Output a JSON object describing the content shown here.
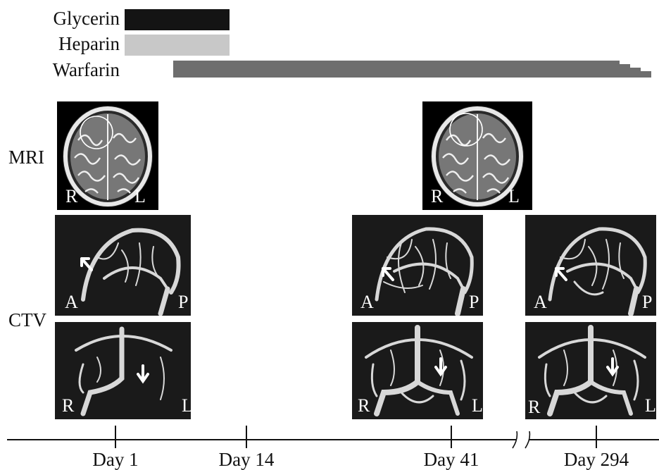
{
  "drugs": [
    {
      "name": "Glycerin",
      "color": "#141414"
    },
    {
      "name": "Heparin",
      "color": "#c8c8c8"
    },
    {
      "name": "Warfarin",
      "color": "#6e6e6e"
    }
  ],
  "rows": {
    "mri": "MRI",
    "ctv": "CTV"
  },
  "orientation": {
    "right": "R",
    "left": "L",
    "anterior": "A",
    "posterior": "P"
  },
  "timeline": {
    "days": [
      "Day 1",
      "Day 14",
      "Day 41",
      "Day 294"
    ]
  }
}
